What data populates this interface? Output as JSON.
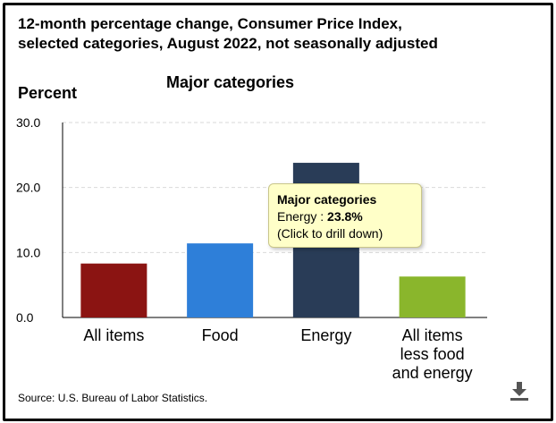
{
  "header": {
    "title_line1": "12-month percentage change, Consumer Price Index,",
    "title_line2": "selected categories, August 2022, not seasonally adjusted",
    "subtitle": "Major categories",
    "ylabel": "Percent"
  },
  "footer": {
    "source": "Source: U.S. Bureau of Labor Statistics."
  },
  "tooltip": {
    "heading": "Major categories",
    "category": "Energy",
    "separator": " : ",
    "value_text": "23.8%",
    "hint": "(Click to drill down)"
  },
  "icons": {
    "download": "download-icon"
  },
  "chart_data": {
    "type": "bar",
    "title": "Major categories",
    "ylabel": "Percent",
    "xlabel": "",
    "ylim": [
      0,
      30
    ],
    "yticks": [
      "0.0",
      "10.0",
      "20.0",
      "30.0"
    ],
    "grid": true,
    "categories": [
      [
        "All items"
      ],
      [
        "Food"
      ],
      [
        "Energy"
      ],
      [
        "All items",
        "less food",
        "and energy"
      ]
    ],
    "values": [
      8.3,
      11.4,
      23.8,
      6.3
    ],
    "colors": [
      "#8b1412",
      "#2e7fd9",
      "#293c57",
      "#8ab62c"
    ]
  }
}
